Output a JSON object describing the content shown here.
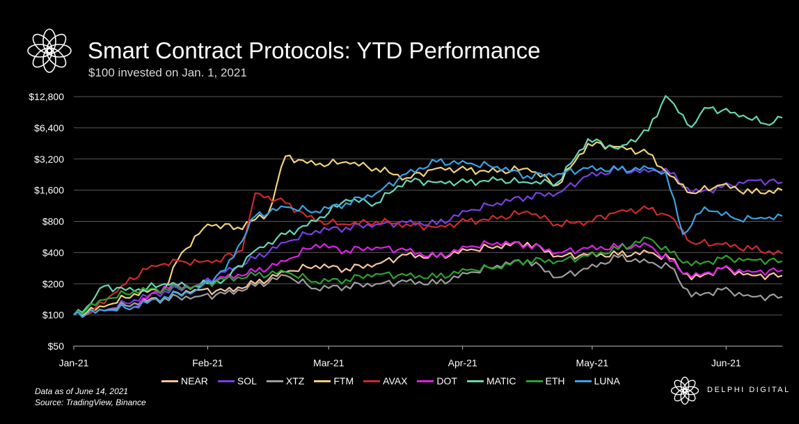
{
  "header": {
    "title": "Smart Contract Protocols: YTD Performance",
    "subtitle": "$100 invested on Jan. 1, 2021"
  },
  "footer": {
    "data_note": "Data as of June 14, 2021",
    "source": "Source:  TradingView, Binance",
    "brand": "DELPHI DIGITAL"
  },
  "chart_data": {
    "type": "line",
    "title": "Smart Contract Protocols: YTD Performance",
    "subtitle": "$100 invested on Jan. 1, 2021",
    "y_scale": "log2",
    "ylim": [
      50,
      12800
    ],
    "y_ticks": [
      50,
      100,
      200,
      400,
      800,
      1600,
      3200,
      6400,
      12800
    ],
    "y_tick_labels": [
      "$50",
      "$100",
      "$200",
      "$400",
      "$800",
      "$1,600",
      "$3,200",
      "$6,400",
      "$12,800"
    ],
    "xlim": [
      "2021-01-01",
      "2021-06-14"
    ],
    "x_ticks": [
      "2021-01-01",
      "2021-02-01",
      "2021-03-01",
      "2021-04-01",
      "2021-05-01",
      "2021-06-01"
    ],
    "x_tick_labels": [
      "Jan-21",
      "Feb-21",
      "Mar-21",
      "Apr-21",
      "May-21",
      "Jun-21"
    ],
    "grid": "horizontal",
    "legend_position": "bottom",
    "series": [
      {
        "name": "NEAR",
        "color": "#f7c59f",
        "points": [
          [
            "2021-01-01",
            100
          ],
          [
            "2021-01-08",
            110
          ],
          [
            "2021-01-15",
            130
          ],
          [
            "2021-01-22",
            150
          ],
          [
            "2021-01-29",
            175
          ],
          [
            "2021-02-05",
            170
          ],
          [
            "2021-02-12",
            200
          ],
          [
            "2021-02-19",
            260
          ],
          [
            "2021-02-26",
            300
          ],
          [
            "2021-03-05",
            280
          ],
          [
            "2021-03-12",
            310
          ],
          [
            "2021-03-19",
            380
          ],
          [
            "2021-03-26",
            360
          ],
          [
            "2021-04-02",
            420
          ],
          [
            "2021-04-09",
            460
          ],
          [
            "2021-04-16",
            500
          ],
          [
            "2021-04-23",
            370
          ],
          [
            "2021-04-30",
            380
          ],
          [
            "2021-05-07",
            380
          ],
          [
            "2021-05-14",
            400
          ],
          [
            "2021-05-19",
            350
          ],
          [
            "2021-05-24",
            220
          ],
          [
            "2021-05-31",
            280
          ],
          [
            "2021-06-07",
            240
          ],
          [
            "2021-06-14",
            240
          ]
        ]
      },
      {
        "name": "SOL",
        "color": "#7a3fe6",
        "points": [
          [
            "2021-01-01",
            100
          ],
          [
            "2021-01-08",
            110
          ],
          [
            "2021-01-15",
            140
          ],
          [
            "2021-01-22",
            170
          ],
          [
            "2021-01-29",
            190
          ],
          [
            "2021-02-05",
            260
          ],
          [
            "2021-02-12",
            350
          ],
          [
            "2021-02-19",
            500
          ],
          [
            "2021-02-26",
            650
          ],
          [
            "2021-03-05",
            700
          ],
          [
            "2021-03-12",
            750
          ],
          [
            "2021-03-19",
            780
          ],
          [
            "2021-03-26",
            750
          ],
          [
            "2021-04-02",
            1000
          ],
          [
            "2021-04-09",
            1200
          ],
          [
            "2021-04-16",
            1400
          ],
          [
            "2021-04-23",
            1500
          ],
          [
            "2021-04-30",
            2200
          ],
          [
            "2021-05-07",
            2500
          ],
          [
            "2021-05-14",
            2400
          ],
          [
            "2021-05-18",
            2600
          ],
          [
            "2021-05-24",
            1500
          ],
          [
            "2021-05-31",
            1700
          ],
          [
            "2021-06-07",
            2000
          ],
          [
            "2021-06-14",
            1900
          ]
        ]
      },
      {
        "name": "XTZ",
        "color": "#9e9e9e",
        "points": [
          [
            "2021-01-01",
            100
          ],
          [
            "2021-01-08",
            110
          ],
          [
            "2021-01-15",
            130
          ],
          [
            "2021-01-22",
            145
          ],
          [
            "2021-01-29",
            150
          ],
          [
            "2021-02-05",
            160
          ],
          [
            "2021-02-12",
            190
          ],
          [
            "2021-02-19",
            240
          ],
          [
            "2021-02-26",
            180
          ],
          [
            "2021-03-05",
            190
          ],
          [
            "2021-03-12",
            200
          ],
          [
            "2021-03-19",
            210
          ],
          [
            "2021-03-26",
            200
          ],
          [
            "2021-04-02",
            250
          ],
          [
            "2021-04-09",
            300
          ],
          [
            "2021-04-16",
            340
          ],
          [
            "2021-04-23",
            230
          ],
          [
            "2021-04-30",
            280
          ],
          [
            "2021-05-07",
            360
          ],
          [
            "2021-05-14",
            320
          ],
          [
            "2021-05-19",
            290
          ],
          [
            "2021-05-24",
            150
          ],
          [
            "2021-05-31",
            175
          ],
          [
            "2021-06-07",
            150
          ],
          [
            "2021-06-14",
            150
          ]
        ]
      },
      {
        "name": "FTM",
        "color": "#f3d27a",
        "points": [
          [
            "2021-01-01",
            100
          ],
          [
            "2021-01-08",
            120
          ],
          [
            "2021-01-15",
            160
          ],
          [
            "2021-01-22",
            180
          ],
          [
            "2021-01-26",
            400
          ],
          [
            "2021-02-01",
            750
          ],
          [
            "2021-02-08",
            700
          ],
          [
            "2021-02-15",
            950
          ],
          [
            "2021-02-19",
            3400
          ],
          [
            "2021-02-26",
            2800
          ],
          [
            "2021-03-05",
            3000
          ],
          [
            "2021-03-12",
            2600
          ],
          [
            "2021-03-19",
            2100
          ],
          [
            "2021-03-26",
            2600
          ],
          [
            "2021-04-02",
            2500
          ],
          [
            "2021-04-09",
            2400
          ],
          [
            "2021-04-16",
            2600
          ],
          [
            "2021-04-23",
            1800
          ],
          [
            "2021-04-30",
            4500
          ],
          [
            "2021-05-07",
            4200
          ],
          [
            "2021-05-14",
            3600
          ],
          [
            "2021-05-19",
            2200
          ],
          [
            "2021-05-24",
            1500
          ],
          [
            "2021-05-31",
            1800
          ],
          [
            "2021-06-07",
            1500
          ],
          [
            "2021-06-14",
            1600
          ]
        ]
      },
      {
        "name": "AVAX",
        "color": "#d02a2a",
        "points": [
          [
            "2021-01-01",
            100
          ],
          [
            "2021-01-05",
            105
          ],
          [
            "2021-01-12",
            190
          ],
          [
            "2021-01-19",
            300
          ],
          [
            "2021-01-26",
            330
          ],
          [
            "2021-02-02",
            320
          ],
          [
            "2021-02-09",
            420
          ],
          [
            "2021-02-12",
            1500
          ],
          [
            "2021-02-19",
            1200
          ],
          [
            "2021-02-26",
            800
          ],
          [
            "2021-03-05",
            750
          ],
          [
            "2021-03-12",
            800
          ],
          [
            "2021-03-19",
            750
          ],
          [
            "2021-03-26",
            700
          ],
          [
            "2021-04-02",
            800
          ],
          [
            "2021-04-09",
            850
          ],
          [
            "2021-04-16",
            1000
          ],
          [
            "2021-04-23",
            750
          ],
          [
            "2021-04-30",
            800
          ],
          [
            "2021-05-07",
            1000
          ],
          [
            "2021-05-14",
            1050
          ],
          [
            "2021-05-19",
            900
          ],
          [
            "2021-05-24",
            500
          ],
          [
            "2021-05-31",
            480
          ],
          [
            "2021-06-07",
            430
          ],
          [
            "2021-06-14",
            390
          ]
        ]
      },
      {
        "name": "DOT",
        "color": "#e020e8",
        "points": [
          [
            "2021-01-01",
            100
          ],
          [
            "2021-01-08",
            110
          ],
          [
            "2021-01-15",
            120
          ],
          [
            "2021-01-22",
            190
          ],
          [
            "2021-01-29",
            190
          ],
          [
            "2021-02-05",
            230
          ],
          [
            "2021-02-12",
            260
          ],
          [
            "2021-02-19",
            330
          ],
          [
            "2021-02-26",
            480
          ],
          [
            "2021-03-05",
            420
          ],
          [
            "2021-03-12",
            450
          ],
          [
            "2021-03-19",
            420
          ],
          [
            "2021-03-26",
            360
          ],
          [
            "2021-04-02",
            450
          ],
          [
            "2021-04-09",
            500
          ],
          [
            "2021-04-16",
            480
          ],
          [
            "2021-04-23",
            400
          ],
          [
            "2021-04-30",
            440
          ],
          [
            "2021-05-07",
            450
          ],
          [
            "2021-05-14",
            470
          ],
          [
            "2021-05-19",
            330
          ],
          [
            "2021-05-24",
            230
          ],
          [
            "2021-05-31",
            280
          ],
          [
            "2021-06-07",
            260
          ],
          [
            "2021-06-14",
            270
          ]
        ]
      },
      {
        "name": "MATIC",
        "color": "#66d8b8",
        "points": [
          [
            "2021-01-01",
            100
          ],
          [
            "2021-01-05",
            130
          ],
          [
            "2021-01-08",
            190
          ],
          [
            "2021-01-15",
            170
          ],
          [
            "2021-01-22",
            200
          ],
          [
            "2021-01-29",
            190
          ],
          [
            "2021-02-05",
            220
          ],
          [
            "2021-02-12",
            420
          ],
          [
            "2021-02-19",
            600
          ],
          [
            "2021-02-26",
            800
          ],
          [
            "2021-03-05",
            1300
          ],
          [
            "2021-03-12",
            1200
          ],
          [
            "2021-03-19",
            2000
          ],
          [
            "2021-03-26",
            1900
          ],
          [
            "2021-04-02",
            1900
          ],
          [
            "2021-04-09",
            2000
          ],
          [
            "2021-04-16",
            1900
          ],
          [
            "2021-04-23",
            1900
          ],
          [
            "2021-04-30",
            5000
          ],
          [
            "2021-05-07",
            4000
          ],
          [
            "2021-05-14",
            6000
          ],
          [
            "2021-05-18",
            13000
          ],
          [
            "2021-05-24",
            6500
          ],
          [
            "2021-05-27",
            10000
          ],
          [
            "2021-06-03",
            9000
          ],
          [
            "2021-06-10",
            7000
          ],
          [
            "2021-06-14",
            8000
          ]
        ]
      },
      {
        "name": "ETH",
        "color": "#2fa32f",
        "points": [
          [
            "2021-01-01",
            100
          ],
          [
            "2021-01-08",
            140
          ],
          [
            "2021-01-15",
            170
          ],
          [
            "2021-01-22",
            180
          ],
          [
            "2021-01-29",
            190
          ],
          [
            "2021-02-05",
            220
          ],
          [
            "2021-02-12",
            240
          ],
          [
            "2021-02-19",
            260
          ],
          [
            "2021-02-26",
            210
          ],
          [
            "2021-03-05",
            220
          ],
          [
            "2021-03-12",
            250
          ],
          [
            "2021-03-19",
            240
          ],
          [
            "2021-03-26",
            230
          ],
          [
            "2021-04-02",
            270
          ],
          [
            "2021-04-09",
            290
          ],
          [
            "2021-04-16",
            340
          ],
          [
            "2021-04-23",
            330
          ],
          [
            "2021-04-30",
            370
          ],
          [
            "2021-05-07",
            430
          ],
          [
            "2021-05-14",
            550
          ],
          [
            "2021-05-19",
            400
          ],
          [
            "2021-05-24",
            300
          ],
          [
            "2021-05-31",
            350
          ],
          [
            "2021-06-07",
            340
          ],
          [
            "2021-06-14",
            330
          ]
        ]
      },
      {
        "name": "LUNA",
        "color": "#3aa4e6",
        "points": [
          [
            "2021-01-01",
            100
          ],
          [
            "2021-01-08",
            110
          ],
          [
            "2021-01-15",
            120
          ],
          [
            "2021-01-22",
            150
          ],
          [
            "2021-01-29",
            170
          ],
          [
            "2021-02-05",
            270
          ],
          [
            "2021-02-12",
            900
          ],
          [
            "2021-02-19",
            1100
          ],
          [
            "2021-02-26",
            1000
          ],
          [
            "2021-03-05",
            1200
          ],
          [
            "2021-03-12",
            1500
          ],
          [
            "2021-03-19",
            2300
          ],
          [
            "2021-03-26",
            3000
          ],
          [
            "2021-04-02",
            2900
          ],
          [
            "2021-04-09",
            2700
          ],
          [
            "2021-04-16",
            2200
          ],
          [
            "2021-04-23",
            2300
          ],
          [
            "2021-04-30",
            2600
          ],
          [
            "2021-05-07",
            2500
          ],
          [
            "2021-05-14",
            2600
          ],
          [
            "2021-05-18",
            2400
          ],
          [
            "2021-05-22",
            600
          ],
          [
            "2021-05-27",
            1100
          ],
          [
            "2021-06-03",
            850
          ],
          [
            "2021-06-10",
            850
          ],
          [
            "2021-06-14",
            900
          ]
        ]
      }
    ]
  }
}
